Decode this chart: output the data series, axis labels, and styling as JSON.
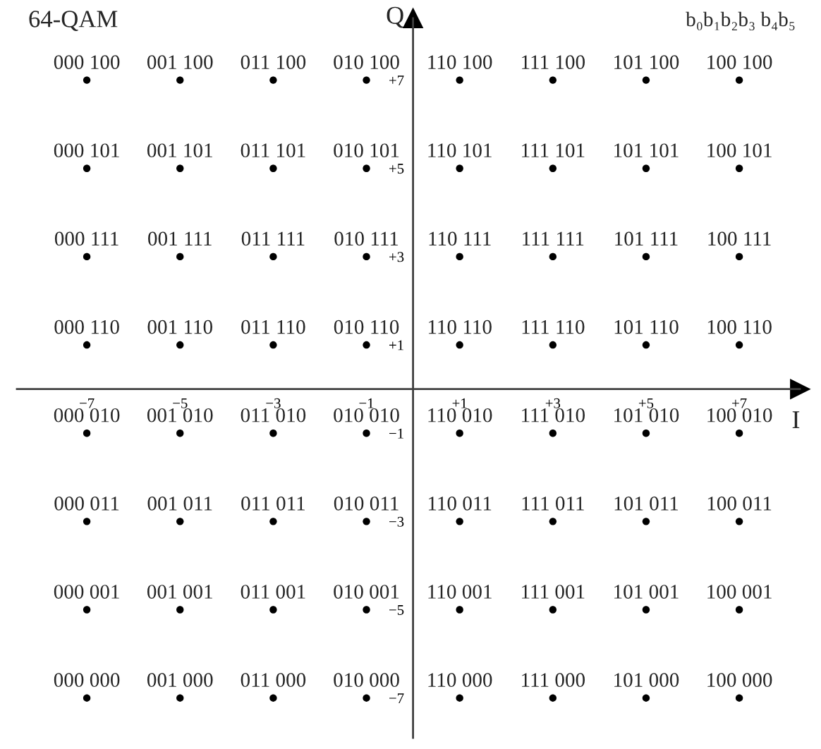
{
  "chart_data": {
    "type": "scatter",
    "title": "64-QAM",
    "xlabel": "I",
    "ylabel": "Q",
    "annotations": [
      "b₀b₁b₂b₃ b₄b₅",
      {
        "text": "000 100",
        "x": -7,
        "y": 7
      },
      {
        "text": "001 100",
        "x": -5,
        "y": 7
      },
      {
        "text": "011 100",
        "x": -3,
        "y": 7
      },
      {
        "text": "010 100",
        "x": -1,
        "y": 7
      },
      {
        "text": "110 100",
        "x": 1,
        "y": 7
      },
      {
        "text": "111 100",
        "x": 3,
        "y": 7
      },
      {
        "text": "101 100",
        "x": 5,
        "y": 7
      },
      {
        "text": "100 100",
        "x": 7,
        "y": 7
      },
      {
        "text": "000 101",
        "x": -7,
        "y": 5
      },
      {
        "text": "001 101",
        "x": -5,
        "y": 5
      },
      {
        "text": "011 101",
        "x": -3,
        "y": 5
      },
      {
        "text": "010 101",
        "x": -1,
        "y": 5
      },
      {
        "text": "110 101",
        "x": 1,
        "y": 5
      },
      {
        "text": "111 101",
        "x": 3,
        "y": 5
      },
      {
        "text": "101 101",
        "x": 5,
        "y": 5
      },
      {
        "text": "100 101",
        "x": 7,
        "y": 5
      },
      {
        "text": "000 111",
        "x": -7,
        "y": 3
      },
      {
        "text": "001 111",
        "x": -5,
        "y": 3
      },
      {
        "text": "011 111",
        "x": -3,
        "y": 3
      },
      {
        "text": "010 111",
        "x": -1,
        "y": 3
      },
      {
        "text": "110 111",
        "x": 1,
        "y": 3
      },
      {
        "text": "111 111",
        "x": 3,
        "y": 3
      },
      {
        "text": "101 111",
        "x": 5,
        "y": 3
      },
      {
        "text": "100 111",
        "x": 7,
        "y": 3
      },
      {
        "text": "000 110",
        "x": -7,
        "y": 1
      },
      {
        "text": "001 110",
        "x": -5,
        "y": 1
      },
      {
        "text": "011 110",
        "x": -3,
        "y": 1
      },
      {
        "text": "010 110",
        "x": -1,
        "y": 1
      },
      {
        "text": "110 110",
        "x": 1,
        "y": 1
      },
      {
        "text": "111 110",
        "x": 3,
        "y": 1
      },
      {
        "text": "101 110",
        "x": 5,
        "y": 1
      },
      {
        "text": "100 110",
        "x": 7,
        "y": 1
      },
      {
        "text": "000 010",
        "x": -7,
        "y": -1
      },
      {
        "text": "001 010",
        "x": -5,
        "y": -1
      },
      {
        "text": "011 010",
        "x": -3,
        "y": -1
      },
      {
        "text": "010 010",
        "x": -1,
        "y": -1
      },
      {
        "text": "110 010",
        "x": 1,
        "y": -1
      },
      {
        "text": "111 010",
        "x": 3,
        "y": -1
      },
      {
        "text": "101 010",
        "x": 5,
        "y": -1
      },
      {
        "text": "100 010",
        "x": 7,
        "y": -1
      },
      {
        "text": "000 011",
        "x": -7,
        "y": -3
      },
      {
        "text": "001 011",
        "x": -5,
        "y": -3
      },
      {
        "text": "011 011",
        "x": -3,
        "y": -3
      },
      {
        "text": "010 011",
        "x": -1,
        "y": -3
      },
      {
        "text": "110 011",
        "x": 1,
        "y": -3
      },
      {
        "text": "111 011",
        "x": 3,
        "y": -3
      },
      {
        "text": "101 011",
        "x": 5,
        "y": -3
      },
      {
        "text": "100 011",
        "x": 7,
        "y": -3
      },
      {
        "text": "000 001",
        "x": -7,
        "y": -5
      },
      {
        "text": "001 001",
        "x": -5,
        "y": -5
      },
      {
        "text": "011 001",
        "x": -3,
        "y": -5
      },
      {
        "text": "010 001",
        "x": -1,
        "y": -5
      },
      {
        "text": "110 001",
        "x": 1,
        "y": -5
      },
      {
        "text": "111 001",
        "x": 3,
        "y": -5
      },
      {
        "text": "101 001",
        "x": 5,
        "y": -5
      },
      {
        "text": "100 001",
        "x": 7,
        "y": -5
      },
      {
        "text": "000 000",
        "x": -7,
        "y": -7
      },
      {
        "text": "001 000",
        "x": -5,
        "y": -7
      },
      {
        "text": "011 000",
        "x": -3,
        "y": -7
      },
      {
        "text": "010 000",
        "x": -1,
        "y": -7
      },
      {
        "text": "110 000",
        "x": 1,
        "y": -7
      },
      {
        "text": "111 000",
        "x": 3,
        "y": -7
      },
      {
        "text": "101 000",
        "x": 5,
        "y": -7
      },
      {
        "text": "100 000",
        "x": 7,
        "y": -7
      }
    ],
    "series": [
      {
        "color": "#000000",
        "x": [
          -7,
          -5,
          -3,
          -1,
          1,
          3,
          5,
          7,
          -7,
          -5,
          -3,
          -1,
          1,
          3,
          5,
          7,
          -7,
          -5,
          -3,
          -1,
          1,
          3,
          5,
          7,
          -7,
          -5,
          -3,
          -1,
          1,
          3,
          5,
          7,
          -7,
          -5,
          -3,
          -1,
          1,
          3,
          5,
          7,
          -7,
          -5,
          -3,
          -1,
          1,
          3,
          5,
          7,
          -7,
          -5,
          -3,
          -1,
          1,
          3,
          5,
          7,
          -7,
          -5,
          -3,
          -1,
          1,
          3,
          5,
          7
        ],
        "values": [
          7,
          7,
          7,
          7,
          7,
          7,
          7,
          7,
          5,
          5,
          5,
          5,
          5,
          5,
          5,
          5,
          3,
          3,
          3,
          3,
          3,
          3,
          3,
          3,
          1,
          1,
          1,
          1,
          1,
          1,
          1,
          1,
          -1,
          -1,
          -1,
          -1,
          -1,
          -1,
          -1,
          -1,
          -3,
          -3,
          -3,
          -3,
          -3,
          -3,
          -3,
          -3,
          -5,
          -5,
          -5,
          -5,
          -5,
          -5,
          -5,
          -5,
          -7,
          -7,
          -7,
          -7,
          -7,
          -7,
          -7,
          -7
        ]
      }
    ],
    "marker": "circle",
    "xlim": [
      -8.5,
      8.3
    ],
    "ylim": [
      -7.9,
      8.4
    ],
    "xticks": [
      {
        "value": -7,
        "label": "−7"
      },
      {
        "value": -5,
        "label": "−5"
      },
      {
        "value": -3,
        "label": "−3"
      },
      {
        "value": -1,
        "label": "−1"
      },
      {
        "value": 1,
        "label": "+1"
      },
      {
        "value": 3,
        "label": "+3"
      },
      {
        "value": 5,
        "label": "+5"
      },
      {
        "value": 7,
        "label": "+7"
      }
    ],
    "yticks": [
      {
        "value": -7,
        "label": "−7"
      },
      {
        "value": -5,
        "label": "−5"
      },
      {
        "value": -3,
        "label": "−3"
      },
      {
        "value": -1,
        "label": "−1"
      },
      {
        "value": 1,
        "label": "+1"
      },
      {
        "value": 3,
        "label": "+3"
      },
      {
        "value": 5,
        "label": "+5"
      },
      {
        "value": 7,
        "label": "+7"
      }
    ]
  }
}
